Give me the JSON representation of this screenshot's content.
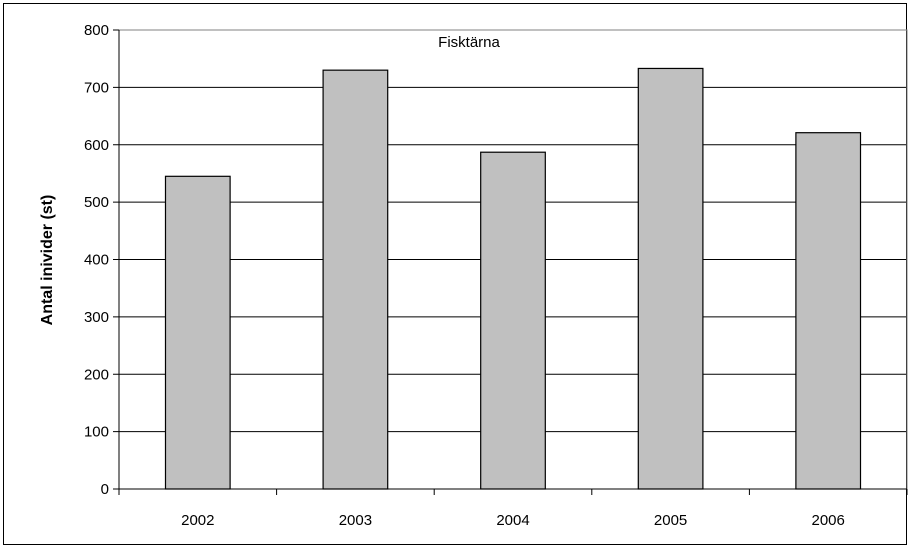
{
  "chart_data": {
    "type": "bar",
    "title": "Fisktärna",
    "xlabel": "",
    "ylabel": "Antal inivider (st)",
    "categories": [
      "2002",
      "2003",
      "2004",
      "2005",
      "2006"
    ],
    "values": [
      545,
      730,
      587,
      733,
      621
    ],
    "ylim": [
      0,
      800
    ],
    "yticks": [
      "0",
      "100",
      "200",
      "300",
      "400",
      "500",
      "600",
      "700",
      "800"
    ],
    "grid": true,
    "legend": "none",
    "colors": {
      "bar_fill": "#c0c0c0",
      "bar_stroke": "#000000",
      "grid": "#000000",
      "plot_border": "#808080"
    }
  }
}
